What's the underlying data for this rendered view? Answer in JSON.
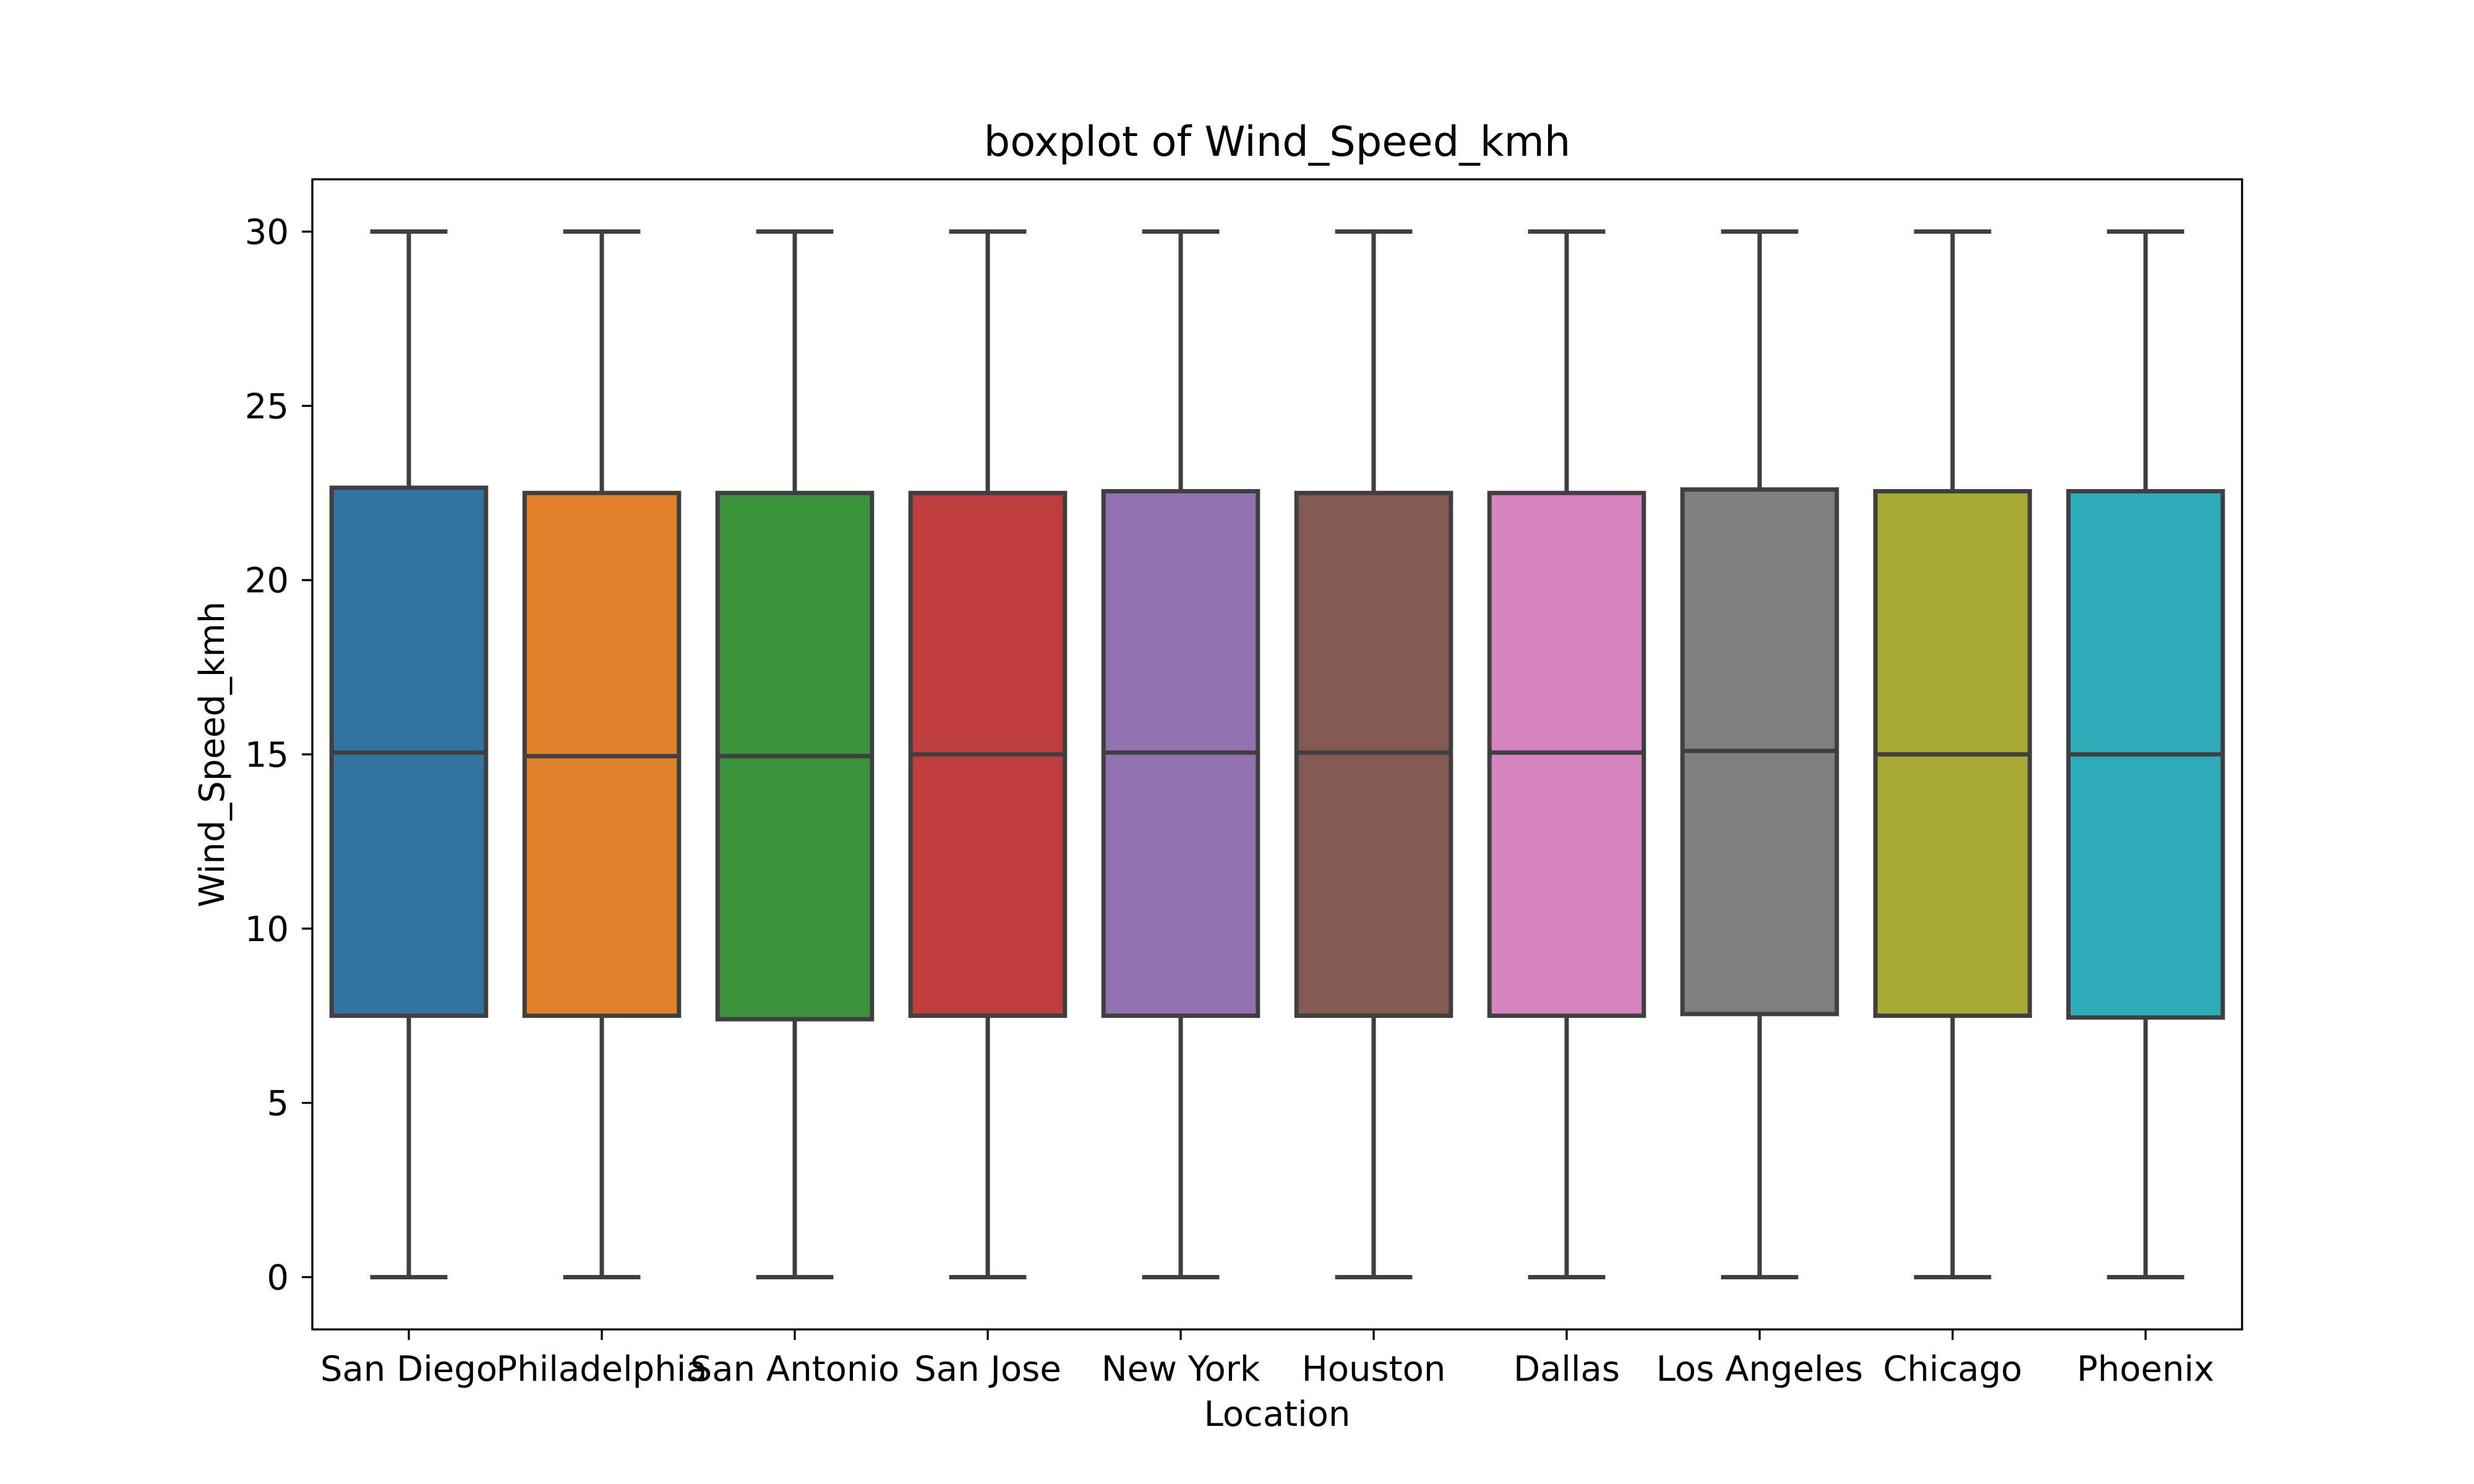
{
  "chart_data": {
    "type": "box",
    "title": "boxplot of Wind_Speed_kmh",
    "xlabel": "Location",
    "ylabel": "Wind_Speed_kmh",
    "ylim": [
      -1.5,
      31.5
    ],
    "yticks": [
      0,
      5,
      10,
      15,
      20,
      25,
      30
    ],
    "grid": false,
    "categories": [
      "San Diego",
      "Philadelphia",
      "San Antonio",
      "San Jose",
      "New York",
      "Houston",
      "Dallas",
      "Los Angeles",
      "Chicago",
      "Phoenix"
    ],
    "series": [
      {
        "category": "San Diego",
        "min": 0,
        "q1": 7.5,
        "median": 15.05,
        "q3": 22.65,
        "max": 30,
        "color": "#3274a1"
      },
      {
        "category": "Philadelphia",
        "min": 0,
        "q1": 7.5,
        "median": 14.95,
        "q3": 22.5,
        "max": 30,
        "color": "#e1812c"
      },
      {
        "category": "San Antonio",
        "min": 0,
        "q1": 7.4,
        "median": 14.95,
        "q3": 22.5,
        "max": 30,
        "color": "#3a923a"
      },
      {
        "category": "San Jose",
        "min": 0,
        "q1": 7.5,
        "median": 15.0,
        "q3": 22.5,
        "max": 30,
        "color": "#c03d3e"
      },
      {
        "category": "New York",
        "min": 0,
        "q1": 7.5,
        "median": 15.05,
        "q3": 22.55,
        "max": 30,
        "color": "#9372b2"
      },
      {
        "category": "Houston",
        "min": 0,
        "q1": 7.5,
        "median": 15.05,
        "q3": 22.5,
        "max": 30,
        "color": "#845b53"
      },
      {
        "category": "Dallas",
        "min": 0,
        "q1": 7.5,
        "median": 15.05,
        "q3": 22.5,
        "max": 30,
        "color": "#d684bd"
      },
      {
        "category": "Los Angeles",
        "min": 0,
        "q1": 7.55,
        "median": 15.1,
        "q3": 22.6,
        "max": 30,
        "color": "#7f7f7f"
      },
      {
        "category": "Chicago",
        "min": 0,
        "q1": 7.5,
        "median": 15.0,
        "q3": 22.55,
        "max": 30,
        "color": "#a9aa35"
      },
      {
        "category": "Phoenix",
        "min": 0,
        "q1": 7.45,
        "median": 15.0,
        "q3": 22.55,
        "max": 30,
        "color": "#2eabb8"
      }
    ]
  }
}
